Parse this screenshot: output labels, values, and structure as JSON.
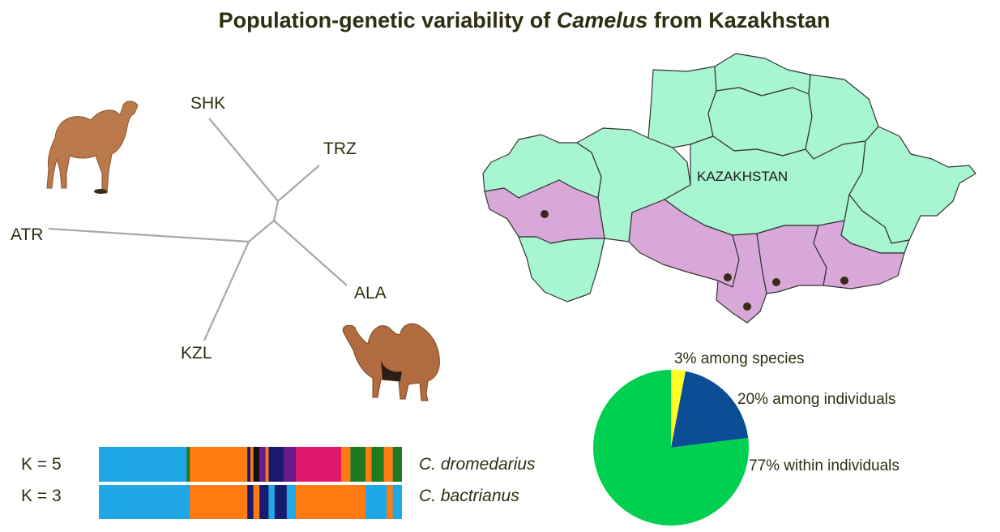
{
  "title_prefix": "Population-genetic variability of ",
  "title_genus": "Camelus",
  "title_suffix": " from Kazakhstan",
  "tree": {
    "labels": [
      "SHK",
      "TRZ",
      "ATR",
      "ALA",
      "KZL"
    ]
  },
  "map": {
    "country_label": "KAZAKHSTAN",
    "colors": {
      "north": "#a8f5d2",
      "south": "#d7a8d8",
      "border": "#333333",
      "point": "#3a2a18"
    }
  },
  "structure": {
    "rows": [
      {
        "k_label": "K = 5",
        "species": "C. dromedarius"
      },
      {
        "k_label": "K = 3",
        "species": "C. bactrianus"
      }
    ],
    "colors": {
      "blue": "#1fa7e6",
      "orange": "#ff7a10",
      "green": "#1f7a1f",
      "navy": "#1a1a6e",
      "magenta": "#e0186e",
      "purple": "#6a1a8a",
      "black": "#111111"
    }
  },
  "amova": {
    "slices": [
      {
        "label": "3% among species",
        "value": 3,
        "color": "#ffff26"
      },
      {
        "label": "20% among individuals",
        "value": 20,
        "color": "#0b4e96"
      },
      {
        "label": "77% within individuals",
        "value": 77,
        "color": "#00d050"
      }
    ]
  }
}
